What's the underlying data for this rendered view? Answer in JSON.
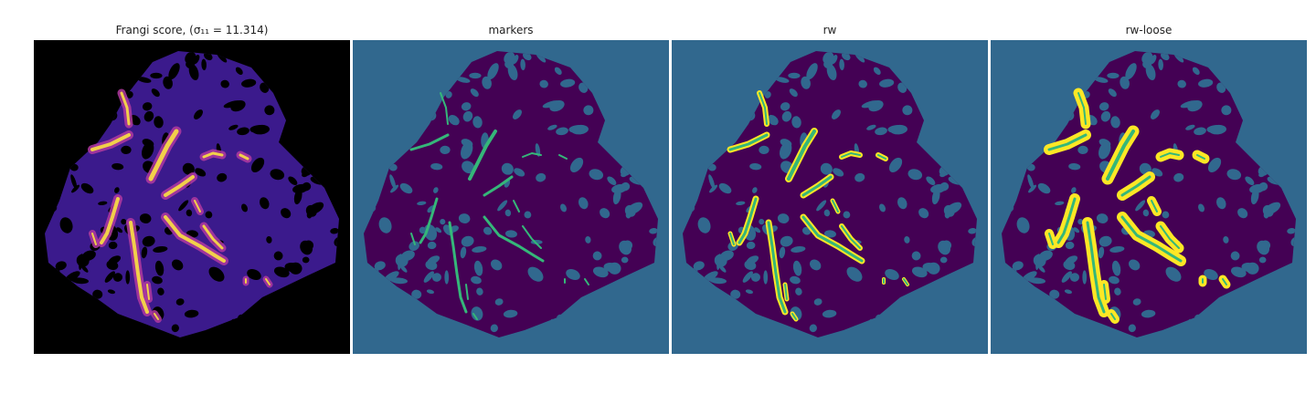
{
  "panels": [
    {
      "title_prefix": "Frangi score, ",
      "title_math": "(σ₁₁ = 11.314)"
    },
    {
      "title": "markers"
    },
    {
      "title": "rw"
    },
    {
      "title": "rw-loose"
    }
  ],
  "colors": {
    "frangi_bg": "#000000",
    "frangi_tissue": "#3b1a8c",
    "frangi_mid": "#b23aa0",
    "frangi_hot": "#f2d04a",
    "seg_bg": "#31688e",
    "seg_tissue": "#440154",
    "seg_green": "#35b779",
    "seg_yellow": "#fde725"
  }
}
